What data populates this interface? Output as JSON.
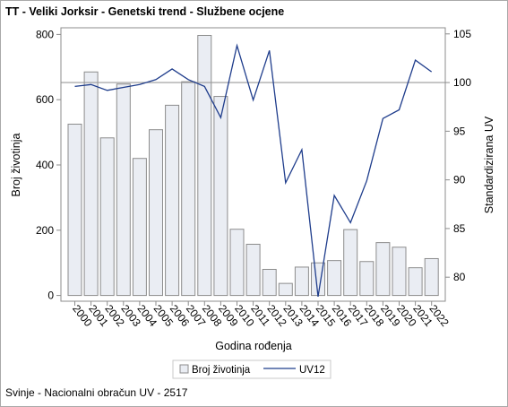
{
  "title": "TT - Veliki Jorksir - Genetski trend - Službene ocjene",
  "footnote": "Svinje - Nacionalni obračun UV - 2517",
  "colors": {
    "bar_fill": "#eaedf3",
    "bar_stroke": "#8c8c8c",
    "line": "#1f3d8c",
    "axis": "#8c8c8c"
  },
  "chart_data": {
    "type": "bar",
    "xlabel": "Godina rođenja",
    "ylabel": "Broj životinja",
    "y2label": "Standardizirana UV",
    "ylim": [
      0,
      800
    ],
    "y2lim": [
      78,
      105
    ],
    "yticks": [
      0,
      200,
      400,
      600,
      800
    ],
    "y2ticks": [
      80,
      85,
      90,
      95,
      100,
      105
    ],
    "reference_line_y2": 100,
    "categories": [
      "2000",
      "2001",
      "2002",
      "2003",
      "2004",
      "2005",
      "2006",
      "2007",
      "2008",
      "2009",
      "2010",
      "2011",
      "2012",
      "2013",
      "2014",
      "2015",
      "2016",
      "2017",
      "2018",
      "2019",
      "2020",
      "2021",
      "2022"
    ],
    "series": [
      {
        "name": "Broj životinja",
        "type": "bar",
        "values": [
          525,
          685,
          483,
          648,
          420,
          508,
          583,
          655,
          797,
          610,
          203,
          157,
          80,
          37,
          87,
          100,
          107,
          202,
          104,
          162,
          148,
          85,
          113
        ]
      },
      {
        "name": "UV12",
        "type": "line",
        "axis": "y2",
        "values": [
          99.6,
          99.8,
          99.2,
          99.5,
          99.8,
          100.3,
          101.4,
          100.3,
          99.6,
          96.4,
          103.8,
          98.2,
          103.3,
          89.7,
          93.1,
          78.0,
          88.4,
          85.6,
          89.9,
          96.3,
          97.2,
          102.3,
          101.1
        ]
      }
    ],
    "legend": {
      "position": "bottom",
      "entries": [
        "Broj životinja",
        "UV12"
      ]
    }
  }
}
